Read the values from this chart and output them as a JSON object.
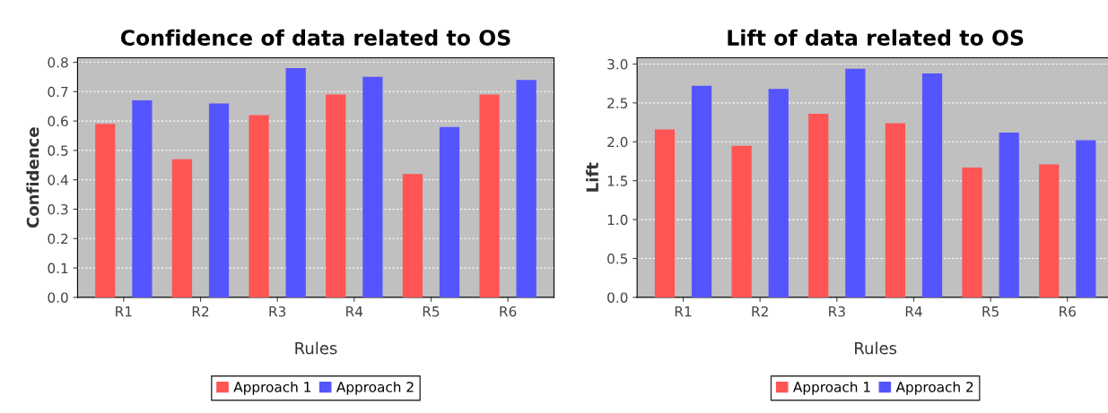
{
  "chart_data": [
    {
      "type": "bar",
      "title": "Confidence of data related to OS",
      "xlabel": "Rules",
      "ylabel": "Confidence",
      "categories": [
        "R1",
        "R2",
        "R3",
        "R4",
        "R5",
        "R6"
      ],
      "series": [
        {
          "name": "Approach 1",
          "color": "#ff5555",
          "values": [
            0.59,
            0.47,
            0.62,
            0.69,
            0.42,
            0.69
          ]
        },
        {
          "name": "Approach 2",
          "color": "#5555ff",
          "values": [
            0.67,
            0.66,
            0.78,
            0.75,
            0.58,
            0.74
          ]
        }
      ],
      "ylim": [
        0,
        0.815
      ],
      "yticks": [
        {
          "value": 0,
          "label": "0.0"
        },
        0.1,
        0.2,
        0.3,
        0.4,
        0.5,
        0.6,
        0.7,
        0.8
      ],
      "grid": "y",
      "legend": "bottom"
    },
    {
      "type": "bar",
      "title": "Lift of data related to OS",
      "xlabel": "Rules",
      "ylabel": "Lift",
      "categories": [
        "R1",
        "R2",
        "R3",
        "R4",
        "R5",
        "R6"
      ],
      "series": [
        {
          "name": "Approach 1",
          "color": "#ff5555",
          "values": [
            2.16,
            1.95,
            2.36,
            2.24,
            1.67,
            1.71
          ]
        },
        {
          "name": "Approach 2",
          "color": "#5555ff",
          "values": [
            2.72,
            2.68,
            2.94,
            2.88,
            2.12,
            2.02
          ]
        }
      ],
      "ylim": [
        0,
        3.08
      ],
      "yticks": [
        {
          "value": 0,
          "label": "0.0"
        },
        0.5,
        {
          "value": 1,
          "label": "1.0"
        },
        1.5,
        {
          "value": 2,
          "label": "2.0"
        },
        2.5,
        {
          "value": 3,
          "label": "3.0"
        }
      ],
      "grid": "y",
      "legend": "bottom"
    }
  ]
}
